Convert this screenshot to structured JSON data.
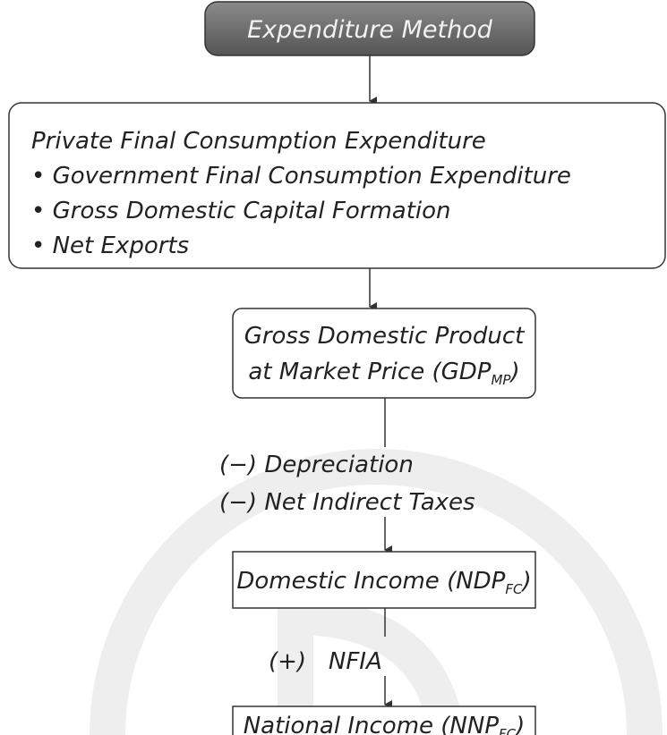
{
  "title": "Expenditure Method",
  "components": {
    "lines": [
      "Private Final Consumption Expenditure",
      "• Government Final Consumption Expenditure",
      "• Gross Domestic Capital Formation",
      "• Net Exports"
    ]
  },
  "gdp": {
    "line1": "Gross Domestic Product",
    "line2": "at Market Price (GDP",
    "subscript": "MP",
    "close": ")"
  },
  "deductions": [
    "(−) Depreciation",
    "(−) Net Indirect Taxes"
  ],
  "domestic": {
    "text": "Domestic Income (NDP",
    "subscript": "FC",
    "close": ")"
  },
  "addition": "(+)   NFIA",
  "national": {
    "text": "National Income (NNP",
    "subscript": "FC",
    "close": ")"
  }
}
